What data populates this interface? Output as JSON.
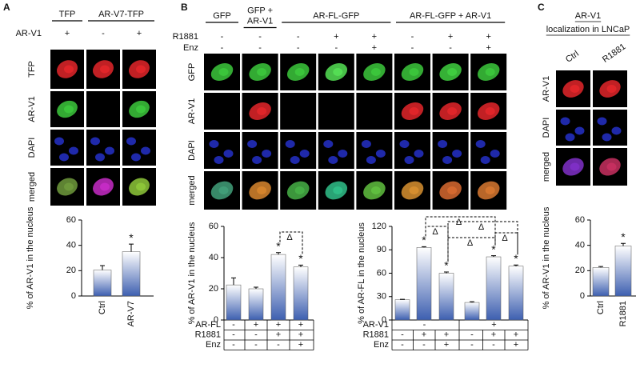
{
  "panels": [
    {
      "label": "A",
      "headers": [
        {
          "lines": [
            "TFP"
          ]
        },
        {
          "lines": [
            "AR-V7-TFP"
          ]
        }
      ],
      "conditions": [
        {
          "name": "AR-V1",
          "marks": [
            "+",
            "-",
            "+"
          ]
        }
      ],
      "row_labels": [
        "TFP",
        "AR-V1",
        "DAPI",
        "merged"
      ]
    },
    {
      "label": "B",
      "headers": [
        {
          "lines": [
            "GFP"
          ]
        },
        {
          "lines": [
            "GFP +",
            "AR-V1"
          ]
        },
        {
          "lines": [
            "AR-FL-GFP"
          ]
        },
        {
          "lines": [
            "AR-FL-GFP + AR-V1"
          ]
        }
      ],
      "conditions": [
        {
          "name": "R1881",
          "marks": [
            "-",
            "-",
            "-",
            "+",
            "+",
            "-",
            "+",
            "+"
          ]
        },
        {
          "name": "Enz",
          "marks": [
            "-",
            "-",
            "-",
            "-",
            "+",
            "-",
            "-",
            "+"
          ]
        }
      ],
      "row_labels": [
        "GFP",
        "AR-V1",
        "DAPI",
        "merged"
      ]
    },
    {
      "label": "C",
      "title_lines": [
        "AR-V1",
        "localization in LNCaP"
      ],
      "headers": [
        {
          "lines": [
            "Ctrl"
          ]
        },
        {
          "lines": [
            "R1881"
          ]
        }
      ],
      "row_labels": [
        "AR-V1",
        "DAPI",
        "merged"
      ]
    }
  ],
  "chart_data": [
    {
      "type": "bar",
      "y_label": "% of AR-V1 in the nucleus",
      "categories": [
        "Ctrl",
        "AR-V7"
      ],
      "values": [
        20.5,
        35
      ],
      "errors": [
        3.5,
        6
      ],
      "color": "#3d5fb0",
      "ylim": [
        0,
        60
      ],
      "yticks": [
        0,
        20,
        40,
        60
      ],
      "stars": [
        {
          "bar": 1,
          "text": "*"
        }
      ]
    },
    {
      "type": "bar",
      "y_label": "% of AR-V1 in the nucleus",
      "values": [
        22.5,
        20,
        42,
        34
      ],
      "errors": [
        4.5,
        1,
        1.2,
        1.2
      ],
      "color": "#3d5fb0",
      "ylim": [
        0,
        60
      ],
      "yticks": [
        0,
        20,
        40,
        60
      ],
      "conditions": [
        {
          "name": "AR-FL",
          "marks": [
            "-",
            "+",
            "+",
            "+"
          ]
        },
        {
          "name": "R1881",
          "marks": [
            "-",
            "-",
            "+",
            "+"
          ]
        },
        {
          "name": "Enz",
          "marks": [
            "-",
            "-",
            "-",
            "+"
          ]
        }
      ],
      "stars": [
        {
          "bar": 2,
          "text": "*"
        },
        {
          "bar": 3,
          "text": "*"
        }
      ],
      "brackets": [
        {
          "from": 2,
          "to": 3,
          "text": "Δ"
        }
      ]
    },
    {
      "type": "bar",
      "y_label": "% of AR-FL in the nucleus",
      "values": [
        26,
        93,
        60,
        22.5,
        81,
        69
      ],
      "errors": [
        0.6,
        1,
        1.5,
        1,
        1.5,
        1.5
      ],
      "color": "#3d5fb0",
      "ylim": [
        0,
        120
      ],
      "yticks": [
        0,
        30,
        60,
        90,
        120
      ],
      "conditions": [
        {
          "name": "AR-V1",
          "marks": [
            "-",
            "+"
          ]
        },
        {
          "name": "R1881",
          "marks": [
            "-",
            "+",
            "+",
            "-",
            "+",
            "+"
          ]
        },
        {
          "name": "Enz",
          "marks": [
            "-",
            "-",
            "+",
            "-",
            "-",
            "+"
          ]
        }
      ],
      "stars": [
        {
          "bar": 1,
          "text": "*"
        },
        {
          "bar": 2,
          "text": "*"
        },
        {
          "bar": 4,
          "text": "*"
        },
        {
          "bar": 5,
          "text": "*"
        }
      ],
      "brackets": [
        {
          "from": 1,
          "to": 4,
          "text": "Δ"
        },
        {
          "from": 1,
          "to": 2,
          "text": "Δ"
        },
        {
          "from": 2,
          "to": 4,
          "text": "Δ"
        },
        {
          "from": 4,
          "to": 5,
          "text": "Δ"
        },
        {
          "from": 2,
          "to": 5,
          "text": "Δ"
        }
      ]
    },
    {
      "type": "bar",
      "y_label": "% of AR-V1 in the nucleus",
      "categories": [
        "Ctrl",
        "R1881"
      ],
      "values": [
        22.5,
        39.5
      ],
      "errors": [
        0.8,
        2
      ],
      "color": "#3d5fb0",
      "ylim": [
        0,
        60
      ],
      "yticks": [
        0,
        20,
        40,
        60
      ],
      "stars": [
        {
          "bar": 1,
          "text": "*"
        }
      ]
    }
  ]
}
